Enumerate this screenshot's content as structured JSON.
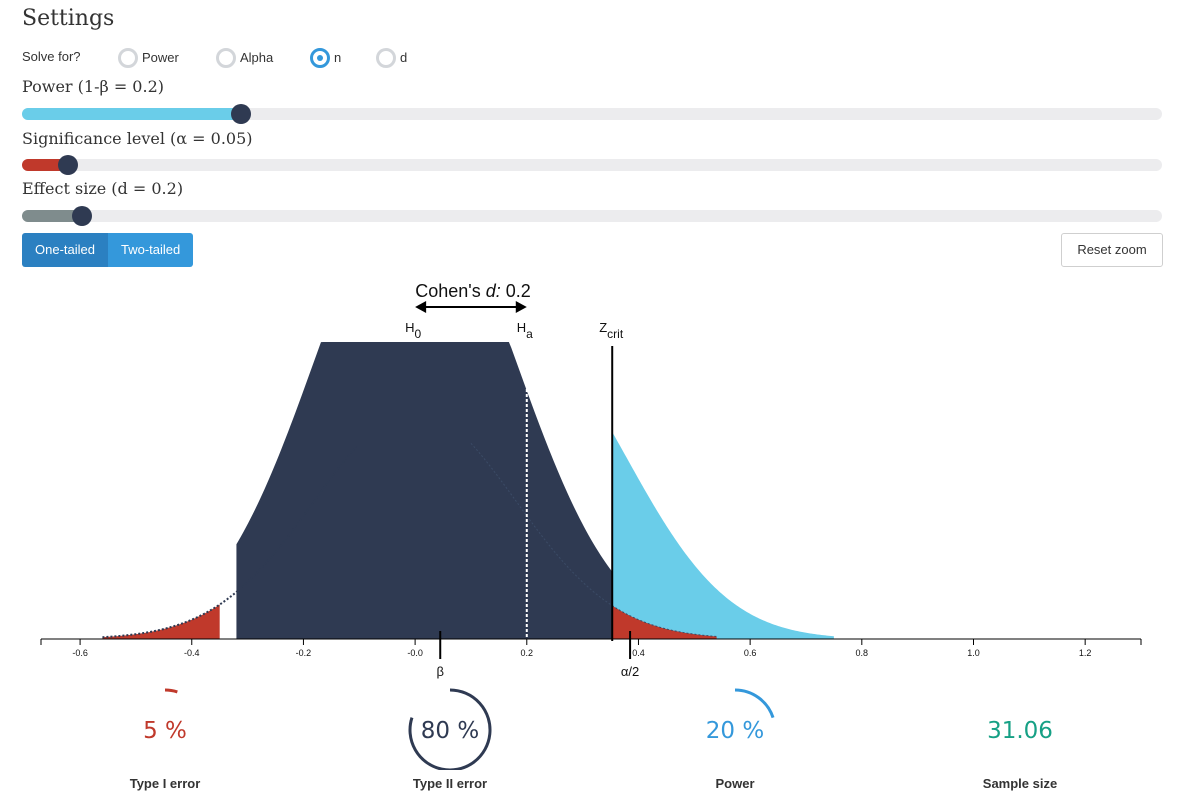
{
  "settings": {
    "title": "Settings",
    "solve_for_label": "Solve for?",
    "solve_options": [
      {
        "label": "Power",
        "checked": false
      },
      {
        "label": "Alpha",
        "checked": false
      },
      {
        "label": "n",
        "checked": true
      },
      {
        "label": "d",
        "checked": false
      }
    ]
  },
  "sliders": {
    "power": {
      "label": "Power (1-β = 0.2)",
      "fraction": 0.192,
      "color": "#6acde9"
    },
    "alpha": {
      "label": "Significance level (α = 0.05)",
      "fraction": 0.04,
      "color": "#c0392b"
    },
    "effect": {
      "label": "Effect size (d = 0.2)",
      "fraction": 0.053,
      "color": "#7f8c8d"
    }
  },
  "tails": {
    "one_tailed": "One-tailed",
    "two_tailed": "Two-tailed",
    "active": "one"
  },
  "reset_zoom": "Reset zoom",
  "plot": {
    "title_prefix": "Cohen's ",
    "title_italic": "d:",
    "title_value": " 0.2",
    "h0": "H",
    "h0_sub": "0",
    "ha": "H",
    "ha_sub": "a",
    "zcrit": "Z",
    "zcrit_sub": "crit",
    "beta_marker": "β",
    "alpha_marker": "α/2",
    "x_ticks": [
      "-0.6",
      "-0.4",
      "-0.2",
      "-0.0",
      "0.2",
      "0.4",
      "0.6",
      "0.8",
      "1.0",
      "1.2"
    ],
    "x_tick_values": [
      -0.6,
      -0.4,
      -0.2,
      0.0,
      0.2,
      0.4,
      0.6,
      0.8,
      1.0,
      1.2
    ],
    "x_domain": [
      -0.67,
      1.3
    ],
    "d": 0.2,
    "z_crit": 0.353,
    "sigma": 0.18,
    "colors": {
      "dark": "#2f3a52",
      "power": "#6acde9",
      "alpha": "#c0392b"
    }
  },
  "stats": {
    "type1": {
      "value": "5 %",
      "label": "Type I error",
      "fraction": 0.05,
      "color": "#c0392b"
    },
    "type2": {
      "value": "80 %",
      "label": "Type II error",
      "fraction": 0.8,
      "color": "#2f3a52"
    },
    "power": {
      "value": "20 %",
      "label": "Power",
      "fraction": 0.2,
      "color": "#3498db"
    },
    "sample": {
      "value": "31.06",
      "label": "Sample size",
      "color": "#16a085"
    }
  }
}
